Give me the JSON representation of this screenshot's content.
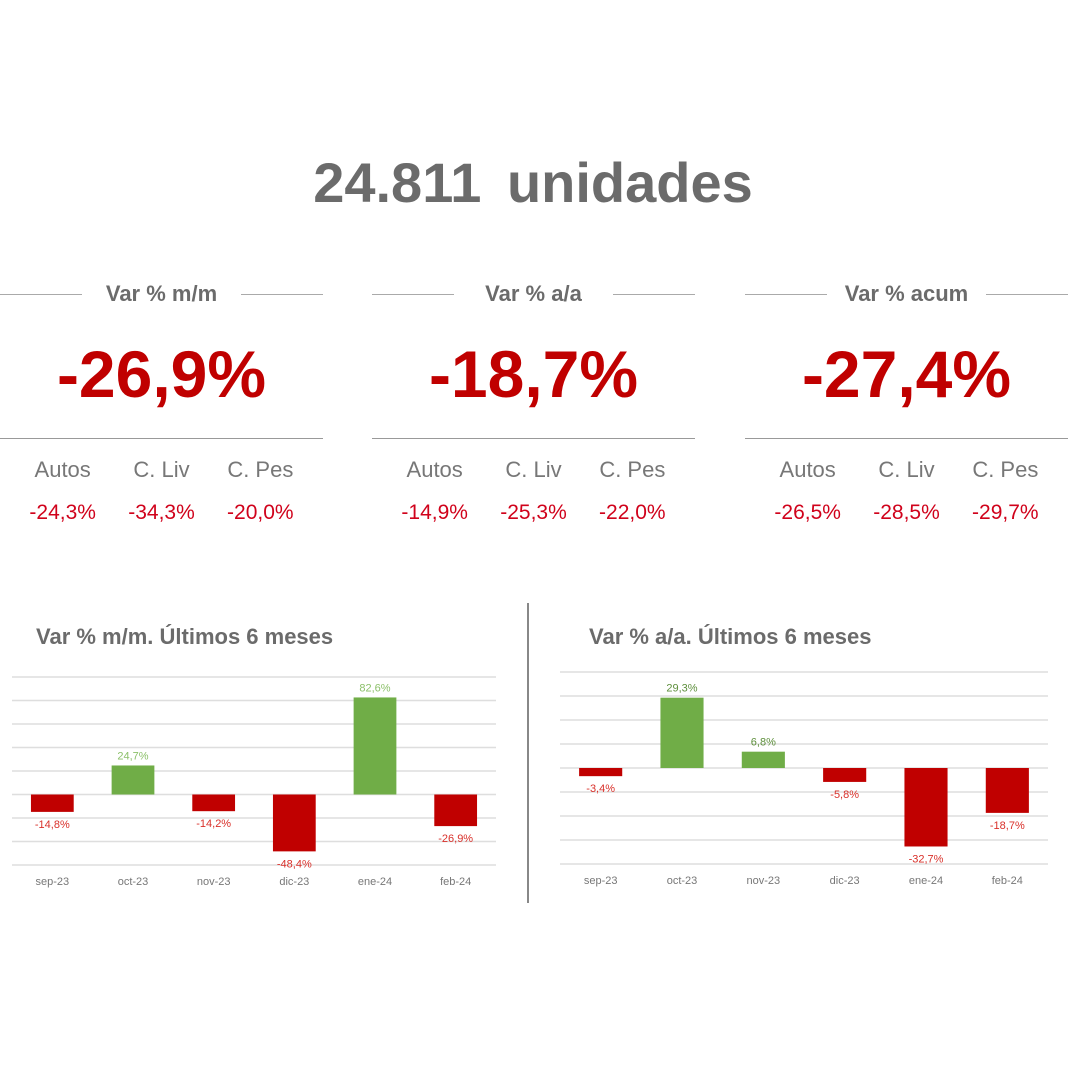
{
  "header": {
    "title": "24.811  unidades"
  },
  "kpis": [
    {
      "label": "Var % m/m",
      "value": "-26,9%",
      "subs": [
        {
          "name": "Autos",
          "value": "-24,3%"
        },
        {
          "name": "C. Liv",
          "value": "-34,3%"
        },
        {
          "name": "C. Pes",
          "value": "-20,0%"
        }
      ]
    },
    {
      "label": "Var % a/a",
      "value": "-18,7%",
      "subs": [
        {
          "name": "Autos",
          "value": "-14,9%"
        },
        {
          "name": "C. Liv",
          "value": "-25,3%"
        },
        {
          "name": "C. Pes",
          "value": "-22,0%"
        }
      ]
    },
    {
      "label": "Var % acum",
      "value": "-27,4%",
      "subs": [
        {
          "name": "Autos",
          "value": "-26,5%"
        },
        {
          "name": "C. Liv",
          "value": "-28,5%"
        },
        {
          "name": "C. Pes",
          "value": "-29,7%"
        }
      ]
    }
  ],
  "colors": {
    "positive": "#70ad47",
    "negative": "#c00000",
    "text": "#6b6b6b"
  },
  "chart_data": [
    {
      "type": "bar",
      "title": "Var % m/m. Últimos 6 meses",
      "categories": [
        "sep-23",
        "oct-23",
        "nov-23",
        "dic-23",
        "ene-24",
        "feb-24"
      ],
      "values": [
        -14.8,
        24.7,
        -14.2,
        -48.4,
        82.6,
        -26.9
      ],
      "labels": [
        "-14,8%",
        "24,7%",
        "-14,2%",
        "-48,4%",
        "82,6%",
        "-26,9%"
      ],
      "ylim": [
        -60,
        100
      ],
      "grid_step": 20,
      "grid": true
    },
    {
      "type": "bar",
      "title": "Var % a/a. Últimos 6 meses",
      "categories": [
        "sep-23",
        "oct-23",
        "nov-23",
        "dic-23",
        "ene-24",
        "feb-24"
      ],
      "values": [
        -3.4,
        29.3,
        6.8,
        -5.8,
        -32.7,
        -18.7
      ],
      "labels": [
        "-3,4%",
        "29,3%",
        "6,8%",
        "-5,8%",
        "-32,7%",
        "-18,7%"
      ],
      "ylim": [
        -40,
        40
      ],
      "grid_step": 10,
      "grid": true
    }
  ]
}
